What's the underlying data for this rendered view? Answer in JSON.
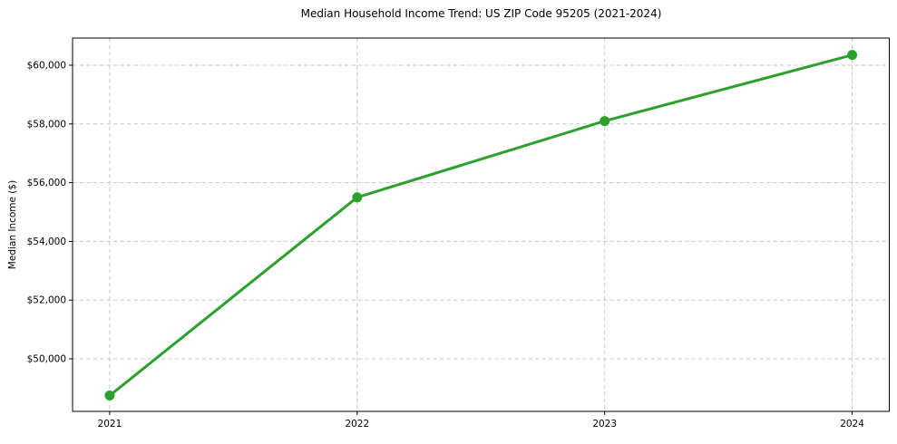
{
  "chart": {
    "title": "Median Household Income Trend: US ZIP Code 95205 (2021-2024)",
    "ylabel": "Median Income ($)"
  },
  "chart_data": {
    "type": "line",
    "title": "Median Household Income Trend: US ZIP Code 95205 (2021-2024)",
    "xlabel": "",
    "ylabel": "Median Income ($)",
    "x": [
      2021,
      2022,
      2023,
      2024
    ],
    "values": [
      48750,
      55500,
      58100,
      60350
    ],
    "x_tick_labels": [
      "2021",
      "2022",
      "2023",
      "2024"
    ],
    "y_ticks": [
      50000,
      52000,
      54000,
      56000,
      58000,
      60000
    ],
    "y_tick_labels": [
      "$50,000",
      "$52,000",
      "$54,000",
      "$56,000",
      "$58,000",
      "$60,000"
    ],
    "xlim": [
      2020.85,
      2024.15
    ],
    "ylim": [
      48210,
      60926
    ],
    "grid": true,
    "grid_style": "dashed",
    "legend_position": "none",
    "line_color": "#2ca02c",
    "marker": "circle",
    "grid_color": "#c9c9c9",
    "spine_color": "#000000",
    "background_color": "#ffffff"
  }
}
